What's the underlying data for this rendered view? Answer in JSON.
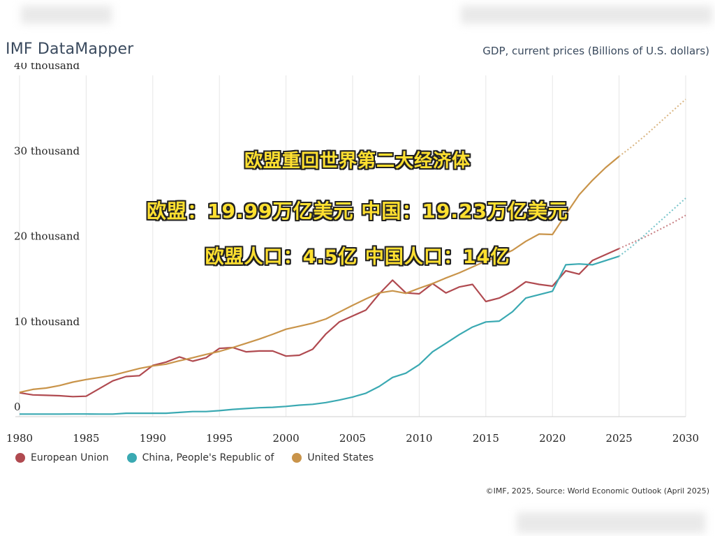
{
  "brand": "IMF DataMapper",
  "overlay": {
    "line1": "欧盟重回世界第二大经济体",
    "line2": "欧盟：19.99万亿美元  中国：19.23万亿美元",
    "line3": "欧盟人口：4.5亿  中国人口：14亿"
  },
  "source": "©IMF, 2025, Source: World Economic Outlook (April 2025)",
  "chart_data": {
    "type": "line",
    "title": "GDP, current prices (Billions of U.S. dollars)",
    "xlabel": "",
    "ylabel": "",
    "xlim": [
      1980,
      2030
    ],
    "ylim": [
      0,
      40000
    ],
    "x_ticks": [
      "1980",
      "1985",
      "1990",
      "1995",
      "2000",
      "2005",
      "2010",
      "2015",
      "2020",
      "2025",
      "2030"
    ],
    "y_ticks": [
      "0",
      "10 thousand",
      "20 thousand",
      "30 thousand",
      "40 thousand"
    ],
    "projection_from": 2025,
    "grid": true,
    "legend_position": "bottom-left",
    "x": [
      1980,
      1981,
      1982,
      1983,
      1984,
      1985,
      1986,
      1987,
      1988,
      1989,
      1990,
      1991,
      1992,
      1993,
      1994,
      1995,
      1996,
      1997,
      1998,
      1999,
      2000,
      2001,
      2002,
      2003,
      2004,
      2005,
      2006,
      2007,
      2008,
      2009,
      2010,
      2011,
      2012,
      2013,
      2014,
      2015,
      2016,
      2017,
      2018,
      2019,
      2020,
      2021,
      2022,
      2023,
      2024,
      2025,
      2026,
      2027,
      2028,
      2029,
      2030
    ],
    "series": [
      {
        "name": "European Union",
        "color": "#b04a50",
        "values": [
          2800,
          2550,
          2500,
          2450,
          2350,
          2400,
          3300,
          4200,
          4700,
          4800,
          6000,
          6400,
          7000,
          6500,
          6900,
          8000,
          8100,
          7600,
          7700,
          7700,
          7100,
          7200,
          7900,
          9700,
          11100,
          11800,
          12500,
          14400,
          16000,
          14500,
          14400,
          15600,
          14500,
          15200,
          15500,
          13500,
          13900,
          14700,
          15800,
          15500,
          15300,
          17100,
          16700,
          18300,
          19000,
          19700,
          20400,
          21100,
          21900,
          22700,
          23600
        ]
      },
      {
        "name": "China, People's Republic of",
        "color": "#3aa9b2",
        "values": [
          300,
          300,
          300,
          300,
          310,
          310,
          300,
          300,
          400,
          400,
          400,
          400,
          500,
          600,
          600,
          700,
          850,
          950,
          1050,
          1100,
          1200,
          1350,
          1450,
          1650,
          1950,
          2300,
          2750,
          3550,
          4600,
          5100,
          6100,
          7600,
          8600,
          9600,
          10500,
          11100,
          11200,
          12300,
          13900,
          14300,
          14700,
          17800,
          17900,
          17800,
          18300,
          18800,
          20000,
          21400,
          22800,
          24200,
          25600
        ]
      },
      {
        "name": "United States",
        "color": "#c9944a",
        "values": [
          2850,
          3200,
          3350,
          3650,
          4050,
          4350,
          4600,
          4850,
          5250,
          5650,
          5950,
          6150,
          6550,
          6900,
          7300,
          7650,
          8100,
          8600,
          9100,
          9650,
          10250,
          10600,
          10950,
          11450,
          12250,
          13050,
          13800,
          14500,
          14750,
          14450,
          15050,
          15600,
          16250,
          16850,
          17550,
          18250,
          18750,
          19500,
          20550,
          21400,
          21350,
          23700,
          26000,
          27700,
          29200,
          30500,
          31700,
          33000,
          34400,
          35800,
          37200
        ]
      }
    ]
  }
}
